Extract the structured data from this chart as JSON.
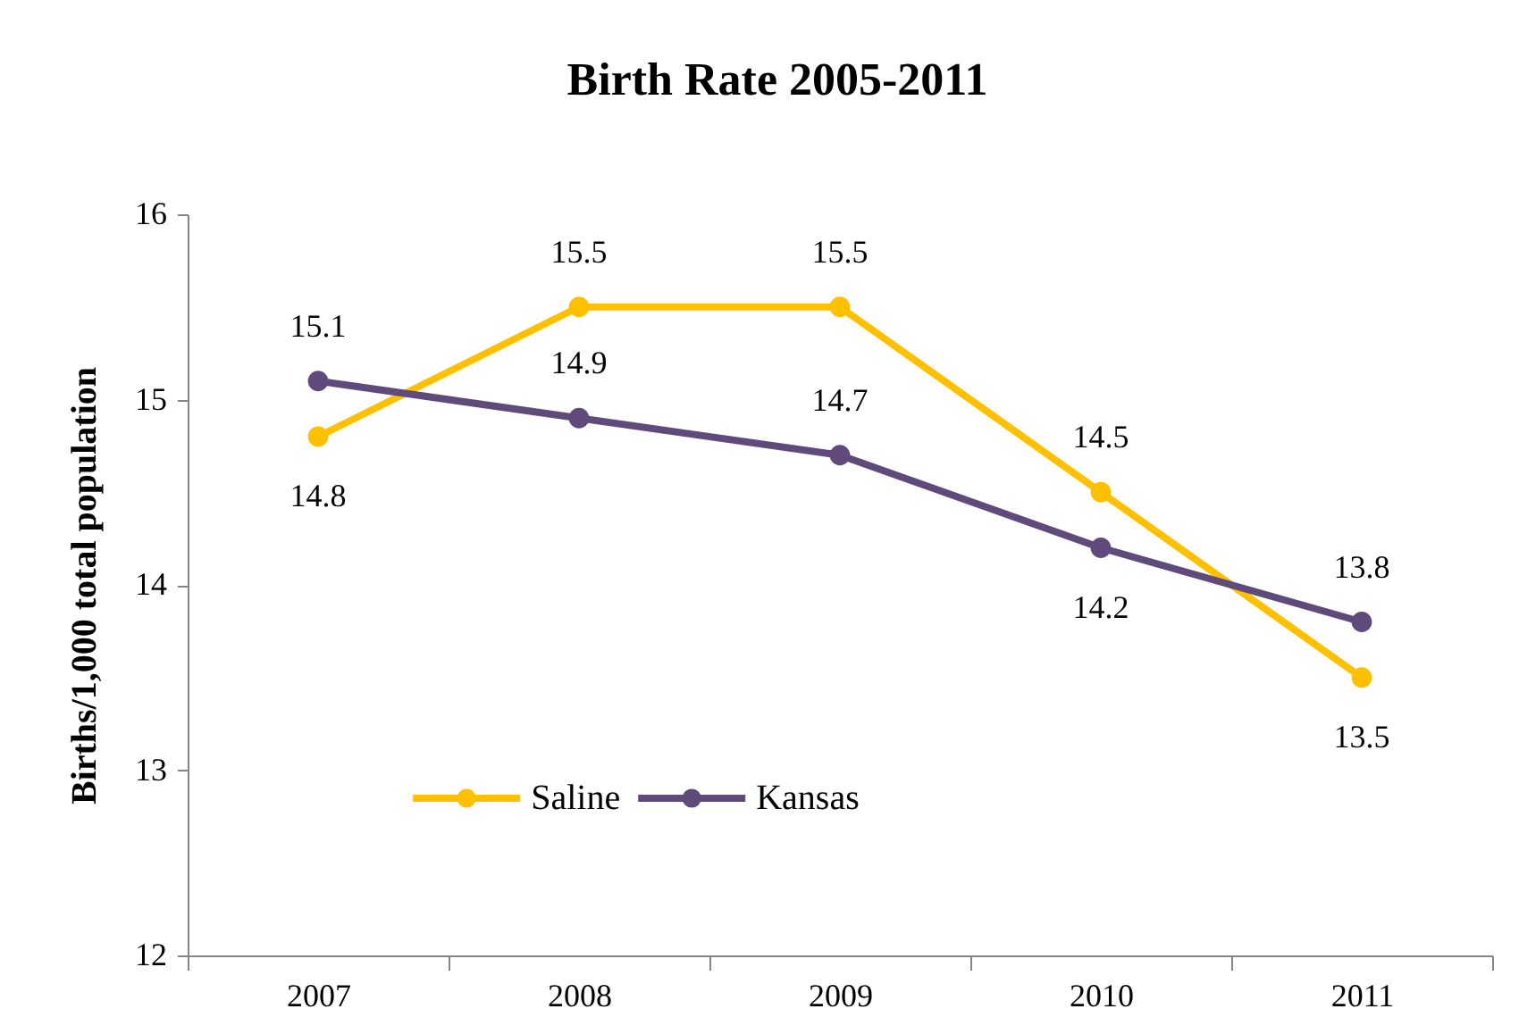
{
  "chart_data": {
    "type": "line",
    "title": "Birth Rate 2005-2011",
    "ylabel": "Births/1,000 total population",
    "categories": [
      "2007",
      "2008",
      "2009",
      "2010",
      "2011"
    ],
    "series": [
      {
        "name": "Saline",
        "color": "#ffc000",
        "values": [
          14.8,
          15.5,
          15.5,
          14.5,
          13.5
        ]
      },
      {
        "name": "Kansas",
        "color": "#604a7b",
        "values": [
          15.1,
          14.9,
          14.7,
          14.2,
          13.8
        ]
      }
    ],
    "ylim": [
      12,
      16
    ],
    "yticks": [
      12,
      13,
      14,
      15,
      16
    ],
    "legend": "bottom left",
    "marker": "circle",
    "line_style": "solid",
    "data_labels": true
  }
}
